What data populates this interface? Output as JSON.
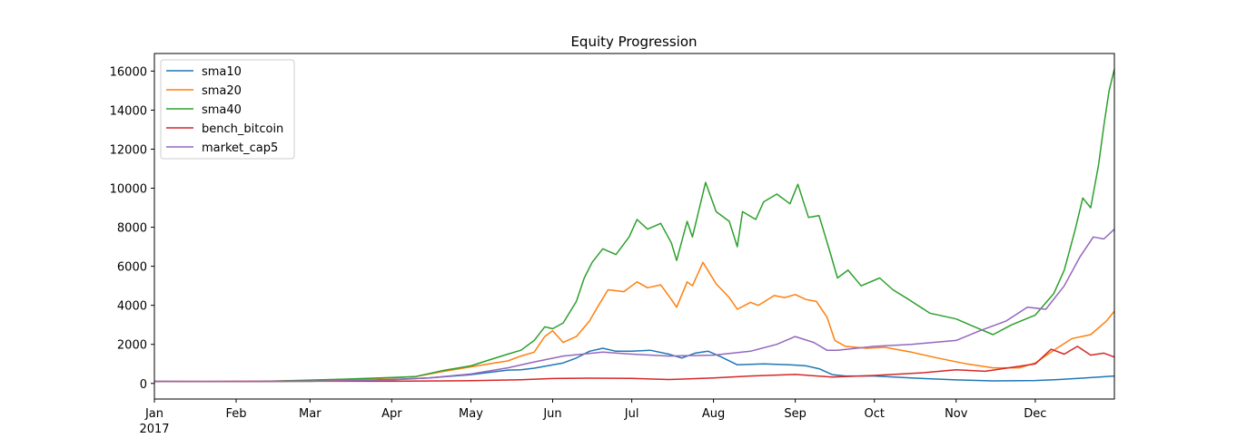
{
  "chart_data": {
    "type": "line",
    "title": "Equity Progression",
    "xlabel": "",
    "ylabel": "",
    "x_range": [
      "2017-01-01",
      "2017-12-31"
    ],
    "ylim": [
      -800,
      16900
    ],
    "grid": false,
    "legend_position": "top-left",
    "x_ticks": [
      {
        "label": "Jan",
        "date": "2017-01-01",
        "sublabel": "2017"
      },
      {
        "label": "Feb",
        "date": "2017-02-01"
      },
      {
        "label": "Mar",
        "date": "2017-03-01"
      },
      {
        "label": "Apr",
        "date": "2017-04-01"
      },
      {
        "label": "May",
        "date": "2017-05-01"
      },
      {
        "label": "Jun",
        "date": "2017-06-01"
      },
      {
        "label": "Jul",
        "date": "2017-07-01"
      },
      {
        "label": "Aug",
        "date": "2017-08-01"
      },
      {
        "label": "Sep",
        "date": "2017-09-01"
      },
      {
        "label": "Oct",
        "date": "2017-10-01"
      },
      {
        "label": "Nov",
        "date": "2017-11-01"
      },
      {
        "label": "Dec",
        "date": "2017-12-01"
      }
    ],
    "y_ticks": [
      0,
      2000,
      4000,
      6000,
      8000,
      10000,
      12000,
      14000,
      16000
    ],
    "series": [
      {
        "name": "sma10",
        "color": "#1f77b4",
        "points": [
          [
            "2017-01-01",
            100
          ],
          [
            "2017-01-20",
            95
          ],
          [
            "2017-02-10",
            105
          ],
          [
            "2017-03-01",
            110
          ],
          [
            "2017-03-15",
            150
          ],
          [
            "2017-04-01",
            200
          ],
          [
            "2017-04-15",
            280
          ],
          [
            "2017-05-01",
            450
          ],
          [
            "2017-05-10",
            600
          ],
          [
            "2017-05-15",
            680
          ],
          [
            "2017-05-20",
            700
          ],
          [
            "2017-05-25",
            780
          ],
          [
            "2017-05-30",
            900
          ],
          [
            "2017-06-05",
            1050
          ],
          [
            "2017-06-10",
            1300
          ],
          [
            "2017-06-15",
            1650
          ],
          [
            "2017-06-20",
            1800
          ],
          [
            "2017-06-25",
            1650
          ],
          [
            "2017-07-01",
            1650
          ],
          [
            "2017-07-08",
            1700
          ],
          [
            "2017-07-15",
            1500
          ],
          [
            "2017-07-20",
            1300
          ],
          [
            "2017-07-25",
            1550
          ],
          [
            "2017-07-30",
            1650
          ],
          [
            "2017-08-04",
            1350
          ],
          [
            "2017-08-10",
            950
          ],
          [
            "2017-08-20",
            1000
          ],
          [
            "2017-08-30",
            950
          ],
          [
            "2017-09-05",
            900
          ],
          [
            "2017-09-10",
            750
          ],
          [
            "2017-09-15",
            450
          ],
          [
            "2017-09-20",
            380
          ],
          [
            "2017-10-01",
            380
          ],
          [
            "2017-10-15",
            280
          ],
          [
            "2017-11-01",
            180
          ],
          [
            "2017-11-15",
            130
          ],
          [
            "2017-12-01",
            150
          ],
          [
            "2017-12-10",
            200
          ],
          [
            "2017-12-20",
            280
          ],
          [
            "2017-12-31",
            380
          ]
        ]
      },
      {
        "name": "sma20",
        "color": "#ff7f0e",
        "points": [
          [
            "2017-01-01",
            100
          ],
          [
            "2017-01-20",
            100
          ],
          [
            "2017-02-10",
            110
          ],
          [
            "2017-03-01",
            140
          ],
          [
            "2017-03-15",
            190
          ],
          [
            "2017-04-01",
            280
          ],
          [
            "2017-04-10",
            350
          ],
          [
            "2017-04-20",
            600
          ],
          [
            "2017-05-01",
            850
          ],
          [
            "2017-05-10",
            1050
          ],
          [
            "2017-05-15",
            1150
          ],
          [
            "2017-05-20",
            1400
          ],
          [
            "2017-05-25",
            1600
          ],
          [
            "2017-05-29",
            2400
          ],
          [
            "2017-06-01",
            2700
          ],
          [
            "2017-06-05",
            2100
          ],
          [
            "2017-06-10",
            2400
          ],
          [
            "2017-06-15",
            3200
          ],
          [
            "2017-06-18",
            3900
          ],
          [
            "2017-06-22",
            4800
          ],
          [
            "2017-06-28",
            4700
          ],
          [
            "2017-07-03",
            5200
          ],
          [
            "2017-07-07",
            4900
          ],
          [
            "2017-07-12",
            5050
          ],
          [
            "2017-07-16",
            4300
          ],
          [
            "2017-07-18",
            3900
          ],
          [
            "2017-07-22",
            5200
          ],
          [
            "2017-07-24",
            5000
          ],
          [
            "2017-07-28",
            6200
          ],
          [
            "2017-08-02",
            5100
          ],
          [
            "2017-08-07",
            4400
          ],
          [
            "2017-08-10",
            3800
          ],
          [
            "2017-08-15",
            4150
          ],
          [
            "2017-08-18",
            4000
          ],
          [
            "2017-08-24",
            4500
          ],
          [
            "2017-08-28",
            4400
          ],
          [
            "2017-09-01",
            4550
          ],
          [
            "2017-09-05",
            4300
          ],
          [
            "2017-09-09",
            4200
          ],
          [
            "2017-09-13",
            3400
          ],
          [
            "2017-09-16",
            2200
          ],
          [
            "2017-09-20",
            1900
          ],
          [
            "2017-09-28",
            1800
          ],
          [
            "2017-10-05",
            1850
          ],
          [
            "2017-10-15",
            1600
          ],
          [
            "2017-10-25",
            1300
          ],
          [
            "2017-11-05",
            1000
          ],
          [
            "2017-11-15",
            800
          ],
          [
            "2017-11-25",
            800
          ],
          [
            "2017-12-01",
            1050
          ],
          [
            "2017-12-08",
            1700
          ],
          [
            "2017-12-15",
            2300
          ],
          [
            "2017-12-22",
            2500
          ],
          [
            "2017-12-28",
            3200
          ],
          [
            "2017-12-31",
            3700
          ]
        ]
      },
      {
        "name": "sma40",
        "color": "#2ca02c",
        "points": [
          [
            "2017-01-01",
            100
          ],
          [
            "2017-01-20",
            90
          ],
          [
            "2017-02-10",
            100
          ],
          [
            "2017-03-01",
            170
          ],
          [
            "2017-03-15",
            220
          ],
          [
            "2017-04-01",
            300
          ],
          [
            "2017-04-10",
            350
          ],
          [
            "2017-04-20",
            650
          ],
          [
            "2017-05-01",
            900
          ],
          [
            "2017-05-08",
            1200
          ],
          [
            "2017-05-15",
            1500
          ],
          [
            "2017-05-20",
            1700
          ],
          [
            "2017-05-25",
            2200
          ],
          [
            "2017-05-29",
            2900
          ],
          [
            "2017-06-01",
            2800
          ],
          [
            "2017-06-05",
            3100
          ],
          [
            "2017-06-10",
            4200
          ],
          [
            "2017-06-13",
            5400
          ],
          [
            "2017-06-16",
            6200
          ],
          [
            "2017-06-20",
            6900
          ],
          [
            "2017-06-25",
            6600
          ],
          [
            "2017-06-30",
            7500
          ],
          [
            "2017-07-03",
            8400
          ],
          [
            "2017-07-07",
            7900
          ],
          [
            "2017-07-12",
            8200
          ],
          [
            "2017-07-16",
            7200
          ],
          [
            "2017-07-18",
            6300
          ],
          [
            "2017-07-22",
            8300
          ],
          [
            "2017-07-24",
            7500
          ],
          [
            "2017-07-29",
            10300
          ],
          [
            "2017-08-02",
            8800
          ],
          [
            "2017-08-07",
            8300
          ],
          [
            "2017-08-10",
            7000
          ],
          [
            "2017-08-12",
            8800
          ],
          [
            "2017-08-17",
            8400
          ],
          [
            "2017-08-20",
            9300
          ],
          [
            "2017-08-25",
            9700
          ],
          [
            "2017-08-30",
            9200
          ],
          [
            "2017-09-02",
            10200
          ],
          [
            "2017-09-06",
            8500
          ],
          [
            "2017-09-10",
            8600
          ],
          [
            "2017-09-14",
            6800
          ],
          [
            "2017-09-17",
            5400
          ],
          [
            "2017-09-21",
            5800
          ],
          [
            "2017-09-26",
            5000
          ],
          [
            "2017-10-03",
            5400
          ],
          [
            "2017-10-08",
            4800
          ],
          [
            "2017-10-14",
            4300
          ],
          [
            "2017-10-22",
            3600
          ],
          [
            "2017-11-01",
            3300
          ],
          [
            "2017-11-08",
            2900
          ],
          [
            "2017-11-15",
            2500
          ],
          [
            "2017-11-22",
            3000
          ],
          [
            "2017-12-01",
            3500
          ],
          [
            "2017-12-08",
            4600
          ],
          [
            "2017-12-12",
            5800
          ],
          [
            "2017-12-16",
            7800
          ],
          [
            "2017-12-19",
            9500
          ],
          [
            "2017-12-22",
            9000
          ],
          [
            "2017-12-25",
            11200
          ],
          [
            "2017-12-27",
            13200
          ],
          [
            "2017-12-29",
            15000
          ],
          [
            "2017-12-31",
            16100
          ]
        ]
      },
      {
        "name": "bench_bitcoin",
        "color": "#d62728",
        "points": [
          [
            "2017-01-01",
            100
          ],
          [
            "2017-02-01",
            100
          ],
          [
            "2017-03-01",
            110
          ],
          [
            "2017-04-01",
            110
          ],
          [
            "2017-05-01",
            140
          ],
          [
            "2017-05-20",
            190
          ],
          [
            "2017-06-01",
            250
          ],
          [
            "2017-06-15",
            270
          ],
          [
            "2017-07-01",
            260
          ],
          [
            "2017-07-15",
            200
          ],
          [
            "2017-08-01",
            280
          ],
          [
            "2017-08-15",
            380
          ],
          [
            "2017-09-01",
            460
          ],
          [
            "2017-09-15",
            330
          ],
          [
            "2017-10-01",
            410
          ],
          [
            "2017-10-20",
            550
          ],
          [
            "2017-11-01",
            700
          ],
          [
            "2017-11-12",
            620
          ],
          [
            "2017-11-20",
            780
          ],
          [
            "2017-12-01",
            1000
          ],
          [
            "2017-12-07",
            1750
          ],
          [
            "2017-12-12",
            1500
          ],
          [
            "2017-12-17",
            1900
          ],
          [
            "2017-12-22",
            1450
          ],
          [
            "2017-12-27",
            1550
          ],
          [
            "2017-12-31",
            1350
          ]
        ]
      },
      {
        "name": "market_cap5",
        "color": "#9467bd",
        "points": [
          [
            "2017-01-01",
            100
          ],
          [
            "2017-02-01",
            100
          ],
          [
            "2017-03-01",
            110
          ],
          [
            "2017-04-01",
            180
          ],
          [
            "2017-04-15",
            280
          ],
          [
            "2017-05-01",
            480
          ],
          [
            "2017-05-15",
            800
          ],
          [
            "2017-05-25",
            1100
          ],
          [
            "2017-06-05",
            1400
          ],
          [
            "2017-06-20",
            1600
          ],
          [
            "2017-07-01",
            1500
          ],
          [
            "2017-07-15",
            1400
          ],
          [
            "2017-08-01",
            1450
          ],
          [
            "2017-08-15",
            1650
          ],
          [
            "2017-08-25",
            2000
          ],
          [
            "2017-09-01",
            2400
          ],
          [
            "2017-09-08",
            2100
          ],
          [
            "2017-09-13",
            1700
          ],
          [
            "2017-09-17",
            1700
          ],
          [
            "2017-10-01",
            1900
          ],
          [
            "2017-10-15",
            2000
          ],
          [
            "2017-11-01",
            2200
          ],
          [
            "2017-11-10",
            2700
          ],
          [
            "2017-11-20",
            3200
          ],
          [
            "2017-11-28",
            3900
          ],
          [
            "2017-12-05",
            3800
          ],
          [
            "2017-12-12",
            5000
          ],
          [
            "2017-12-18",
            6500
          ],
          [
            "2017-12-23",
            7500
          ],
          [
            "2017-12-27",
            7400
          ],
          [
            "2017-12-31",
            7900
          ]
        ]
      }
    ]
  }
}
